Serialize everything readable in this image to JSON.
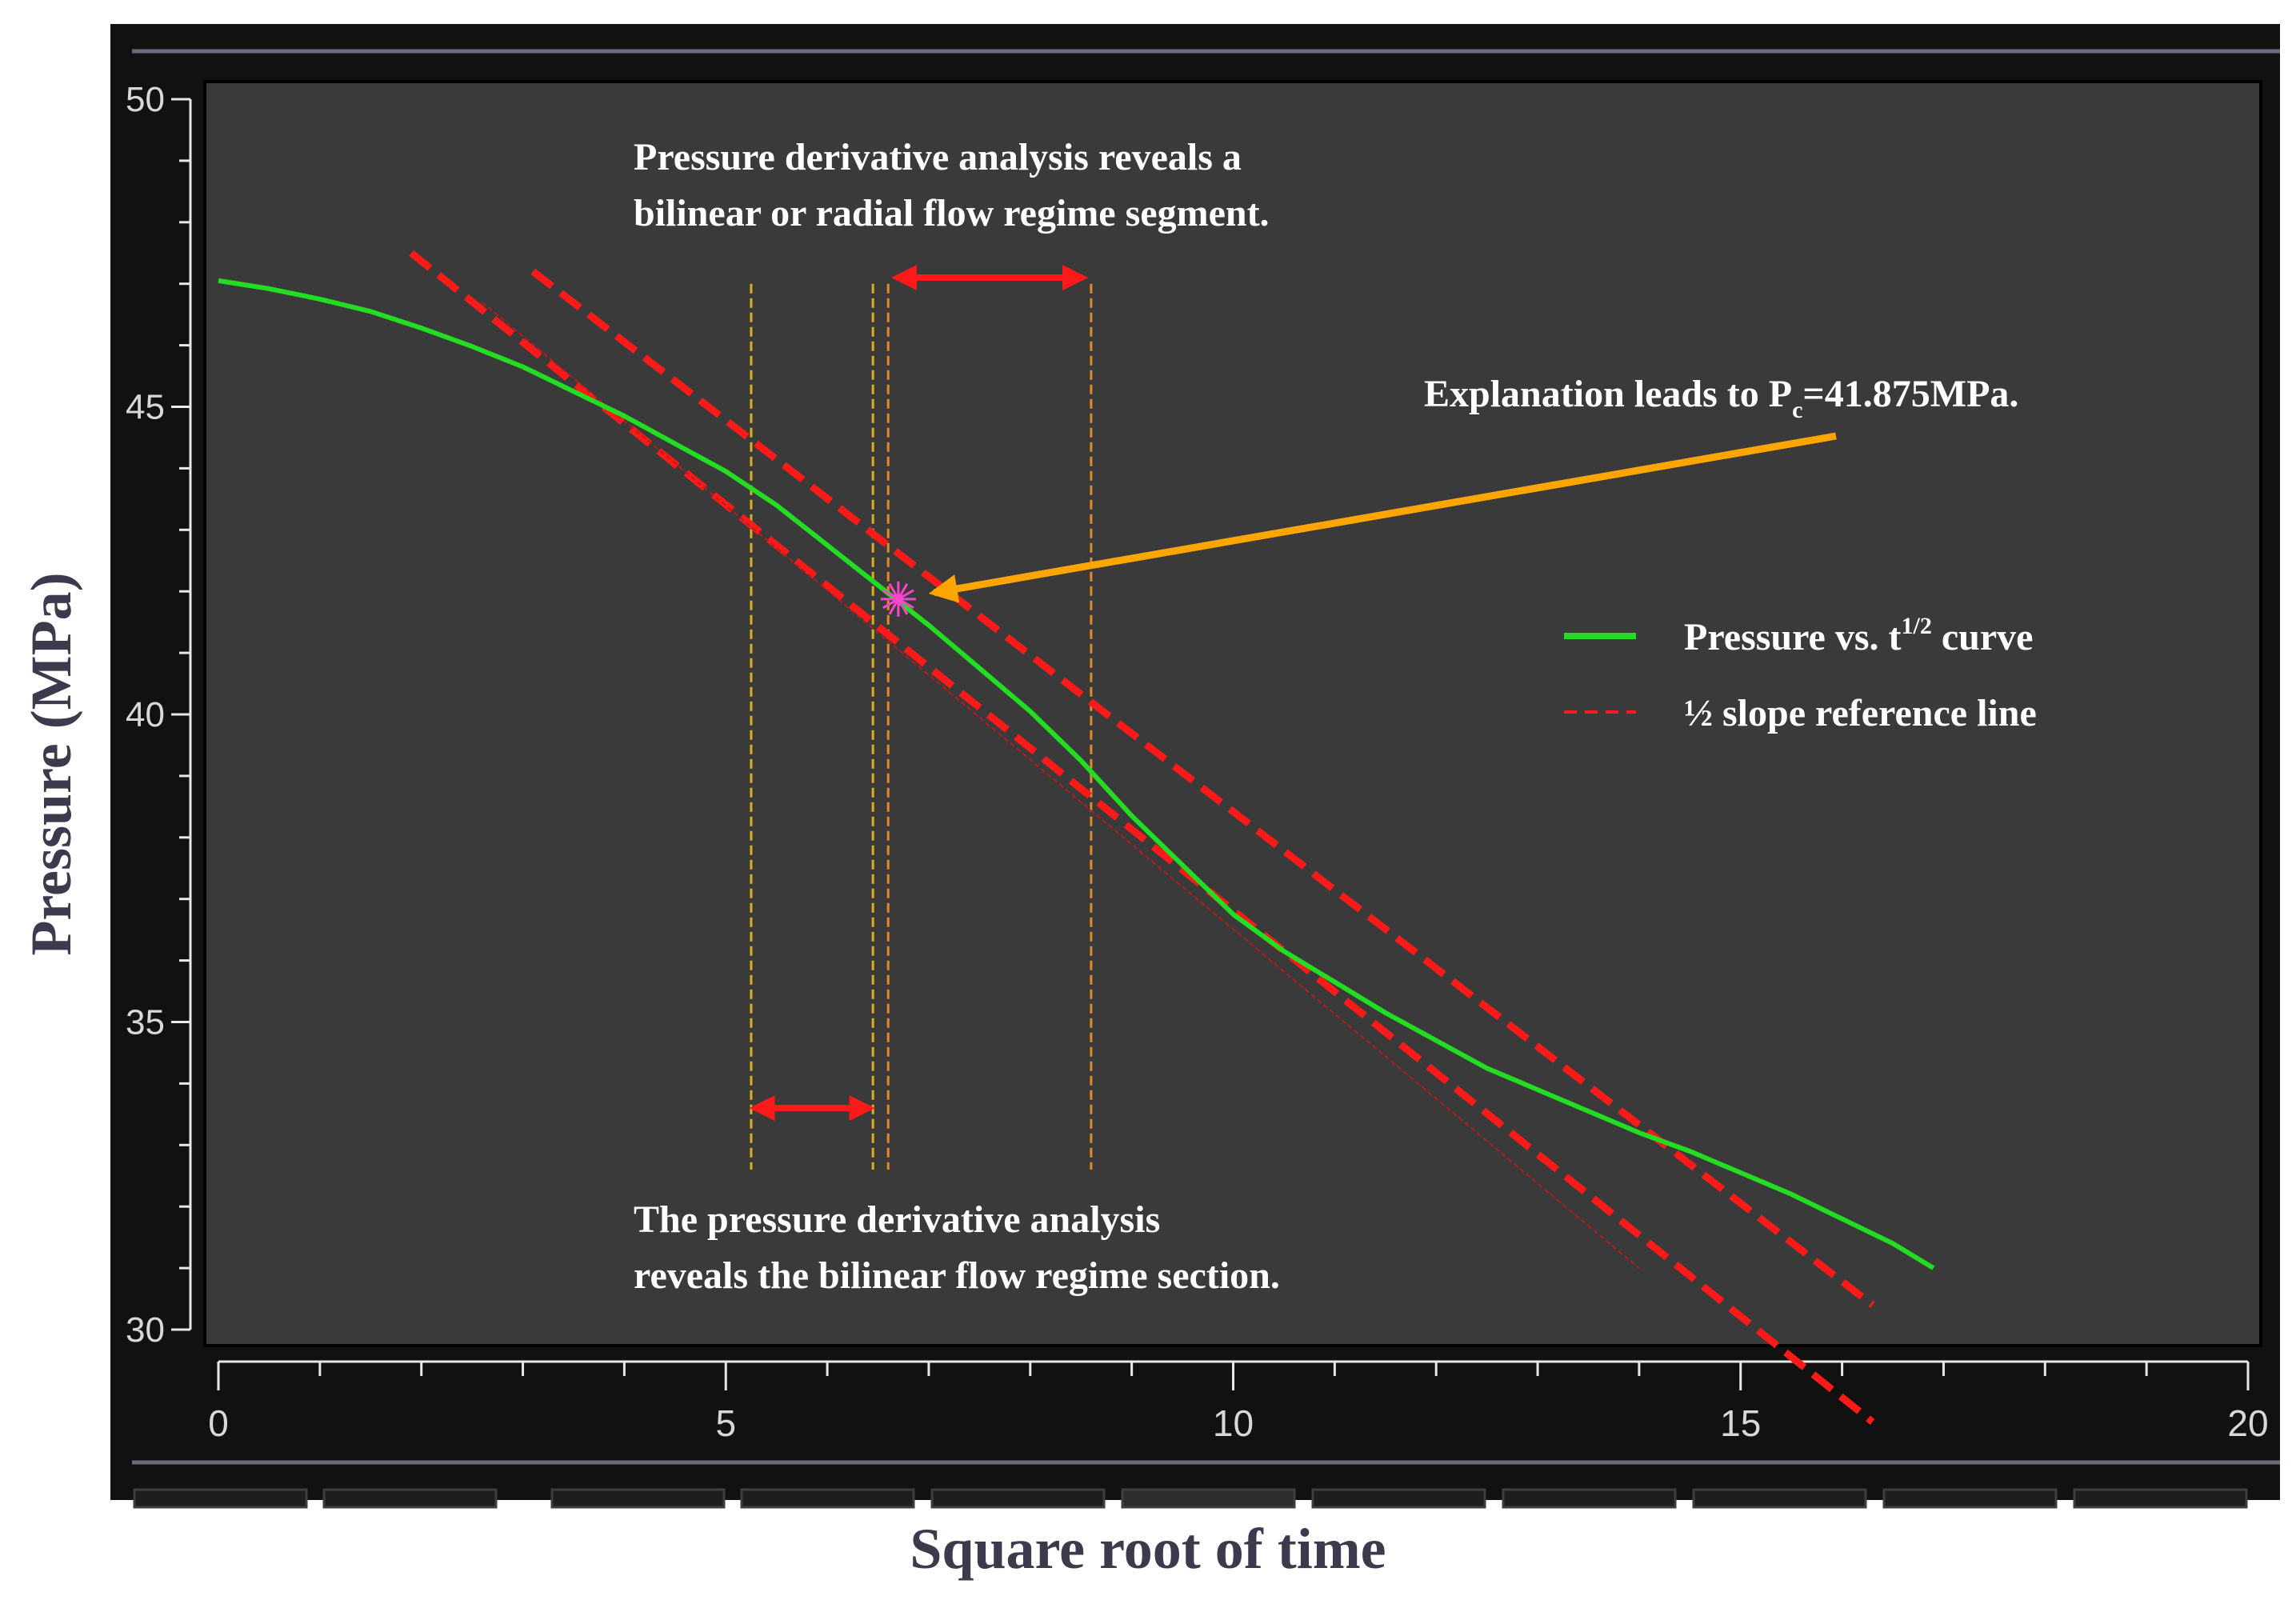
{
  "chart_data": {
    "type": "line",
    "title": "",
    "xlabel": "Square root of time",
    "ylabel": "Pressure (MPa)",
    "xlim": [
      0,
      20
    ],
    "ylim": [
      30,
      50
    ],
    "xticks": [
      "0",
      "5",
      "10",
      "15",
      "20"
    ],
    "yticks": [
      "30",
      "35",
      "40",
      "45",
      "50"
    ],
    "grid": false,
    "legend_position": "right",
    "colors": {
      "background": "#3a3a3a",
      "frame": "#111111",
      "pressure_curve": "#22dd22",
      "reference_line": "#ff1a1a",
      "arrow_orange": "#ffa500",
      "marker": "#ff44cc"
    },
    "series": [
      {
        "name": "Pressure vs. t",
        "name_sup": "1/2",
        "name_suffix": " curve",
        "style": "solid",
        "x": [
          0,
          0.5,
          1,
          1.5,
          2,
          2.5,
          3,
          3.5,
          4,
          4.5,
          5,
          5.5,
          6,
          6.5,
          7,
          7.5,
          8,
          8.5,
          9,
          9.5,
          10,
          10.5,
          11,
          11.5,
          12,
          12.5,
          13,
          13.5,
          14,
          14.5,
          15,
          15.5,
          16,
          16.5,
          16.9
        ],
        "y": [
          47.05,
          46.92,
          46.75,
          46.55,
          46.28,
          45.98,
          45.65,
          45.25,
          44.85,
          44.4,
          43.95,
          43.4,
          42.75,
          42.1,
          41.45,
          40.75,
          40.05,
          39.25,
          38.35,
          37.55,
          36.75,
          36.15,
          35.65,
          35.15,
          34.7,
          34.25,
          33.9,
          33.55,
          33.2,
          32.9,
          32.55,
          32.2,
          31.8,
          31.4,
          31.0
        ]
      },
      {
        "name": "½ slope reference line",
        "style": "dashed",
        "lines": [
          {
            "x": [
              1.9,
              16.3
            ],
            "y": [
              47.5,
              28.5
            ]
          },
          {
            "x": [
              3.1,
              16.3
            ],
            "y": [
              47.2,
              30.4
            ]
          }
        ]
      }
    ],
    "thin_line": {
      "x": [
        2.6,
        14.0
      ],
      "y": [
        46.7,
        31.0
      ]
    },
    "vertical_markers": [
      {
        "x": 5.25,
        "color": "#d9b020"
      },
      {
        "x": 6.45,
        "color": "#d9b020"
      },
      {
        "x": 6.6,
        "color": "#e08a2a"
      },
      {
        "x": 8.6,
        "color": "#e08a2a"
      }
    ],
    "vmarker_yrange": [
      32.6,
      47.0
    ],
    "double_arrows": [
      {
        "x1": 6.65,
        "x2": 8.55,
        "y": 47.1
      },
      {
        "x1": 5.25,
        "x2": 6.45,
        "y": 33.6
      }
    ],
    "crosspoint": {
      "x": 6.7,
      "y": 41.875
    },
    "annotations": {
      "top_line1": "Pressure derivative analysis reveals a",
      "top_line2": "bilinear or radial flow regime segment.",
      "bottom_line1": "The pressure derivative analysis",
      "bottom_line2": "reveals the bilinear flow regime section.",
      "explain_prefix": "Explanation leads to P",
      "explain_sub": "c",
      "explain_suffix": "=41.875MPa."
    }
  }
}
